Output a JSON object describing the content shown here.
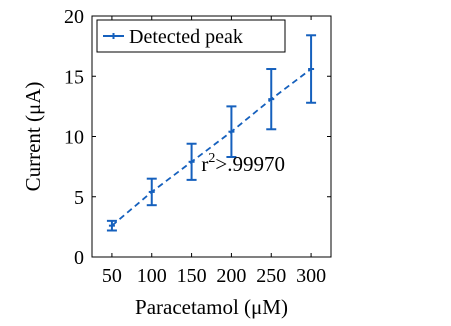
{
  "chart_data": {
    "type": "line",
    "xlabel": "Paracetamol (μM)",
    "ylabel": "Current (μA)",
    "xlim": [
      25,
      325
    ],
    "ylim": [
      0,
      20
    ],
    "xticks": [
      50,
      100,
      150,
      200,
      250,
      300
    ],
    "yticks": [
      0,
      5,
      10,
      15,
      20
    ],
    "grid": false,
    "legend_position": "top-left",
    "series": [
      {
        "name": "Detected peak",
        "color": "#1560BD",
        "line_style": "dashed",
        "markers": "error-bars",
        "x": [
          50,
          100,
          150,
          200,
          250,
          300
        ],
        "y": [
          2.6,
          5.4,
          7.9,
          10.4,
          13.1,
          15.6
        ],
        "y_err": [
          0.4,
          1.1,
          1.5,
          2.1,
          2.5,
          2.8
        ]
      }
    ],
    "annotations": [
      {
        "text": "r",
        "superscript": "2",
        "suffix": ">.99970",
        "x": 200,
        "y": 7.7
      }
    ]
  }
}
